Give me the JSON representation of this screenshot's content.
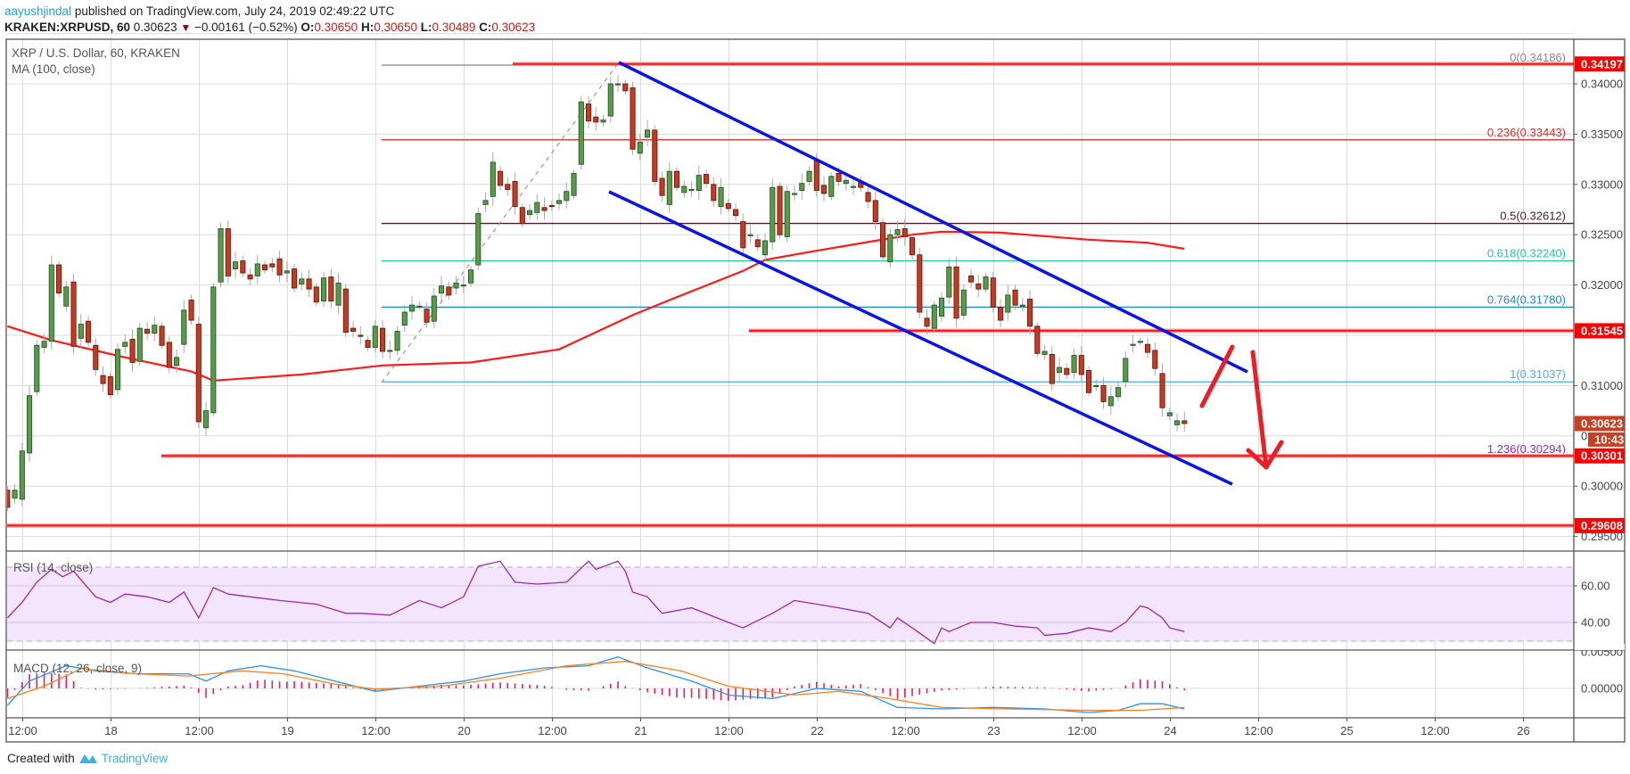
{
  "header": {
    "author": "aayushjindal",
    "published": " published on TradingView.com, July 24, 2019 02:49:22 UTC",
    "symbol": "KRAKEN:XRPUSD, 60",
    "last": "0.30623",
    "change": "−0.00161 (−0.52%)",
    "o_label": "O:",
    "o": "0.30650",
    "h_label": "H:",
    "h": "0.30650",
    "l_label": "L:",
    "l": "0.30489",
    "c_label": "C:",
    "c": "0.30623"
  },
  "legend": {
    "main": "XRP / U.S. Dollar, 60, KRAKEN",
    "ma": "MA (100, close)",
    "rsi": "RSI (14, close)",
    "macd": "MACD (12, 26, close, 9)"
  },
  "footer": {
    "created": "Created with",
    "brand": "TradingView"
  },
  "colors": {
    "up": "#5b9a47",
    "down": "#c8391f",
    "ma": "#ff1a1a",
    "channel": "#0a14e6",
    "level": "#ff1414",
    "rsi": "#9c27b0",
    "macd": "#2196f3",
    "signal": "#ff7f1e",
    "hist": "#e91e63"
  },
  "chart_data": [
    {
      "type": "candlestick",
      "title": "XRP / U.S. Dollar, 60, KRAKEN",
      "ylim": [
        0.2935,
        0.3455
      ],
      "y_ticks": [
        "0.34000",
        "0.33500",
        "0.33000",
        "0.32500",
        "0.32000",
        "0.31000",
        "0.30000",
        "0.29500"
      ],
      "x_ticks": [
        "12:00",
        "18",
        "12:00",
        "19",
        "12:00",
        "20",
        "12:00",
        "21",
        "12:00",
        "22",
        "12:00",
        "23",
        "12:00",
        "24",
        "12:00",
        "25",
        "12:00",
        "26"
      ],
      "candles_ohlc_note": "open, close per hourly bar",
      "candles": [
        [
          0.2996,
          0.2979
        ],
        [
          0.2988,
          0.2996
        ],
        [
          0.2987,
          0.3035
        ],
        [
          0.3033,
          0.309
        ],
        [
          0.3094,
          0.314
        ],
        [
          0.3138,
          0.3144
        ],
        [
          0.3144,
          0.322
        ],
        [
          0.322,
          0.3192
        ],
        [
          0.3179,
          0.3198
        ],
        [
          0.3203,
          0.3139
        ],
        [
          0.3147,
          0.3161
        ],
        [
          0.3164,
          0.3143
        ],
        [
          0.314,
          0.3116
        ],
        [
          0.311,
          0.3102
        ],
        [
          0.3109,
          0.3091
        ],
        [
          0.3096,
          0.3136
        ],
        [
          0.3139,
          0.3143
        ],
        [
          0.3146,
          0.3123
        ],
        [
          0.3124,
          0.3157
        ],
        [
          0.3156,
          0.3152
        ],
        [
          0.3152,
          0.316
        ],
        [
          0.3159,
          0.314
        ],
        [
          0.3143,
          0.3118
        ],
        [
          0.312,
          0.3128
        ],
        [
          0.3141,
          0.3175
        ],
        [
          0.3185,
          0.3165
        ],
        [
          0.3161,
          0.3064
        ],
        [
          0.3058,
          0.3075
        ],
        [
          0.3073,
          0.3198
        ],
        [
          0.3203,
          0.3256
        ],
        [
          0.3256,
          0.3209
        ],
        [
          0.3216,
          0.3223
        ],
        [
          0.3224,
          0.3212
        ],
        [
          0.321,
          0.3206
        ],
        [
          0.3209,
          0.3221
        ],
        [
          0.322,
          0.3215
        ],
        [
          0.3221,
          0.3218
        ],
        [
          0.3226,
          0.321
        ],
        [
          0.3212,
          0.3214
        ],
        [
          0.3216,
          0.3197
        ],
        [
          0.3201,
          0.3206
        ],
        [
          0.3206,
          0.3196
        ],
        [
          0.3198,
          0.3183
        ],
        [
          0.3184,
          0.3207
        ],
        [
          0.3208,
          0.3184
        ],
        [
          0.318,
          0.3202
        ],
        [
          0.3196,
          0.3153
        ],
        [
          0.3157,
          0.3154
        ],
        [
          0.315,
          0.3149
        ],
        [
          0.3145,
          0.3138
        ],
        [
          0.3138,
          0.3159
        ],
        [
          0.3157,
          0.3134
        ],
        [
          0.3135,
          0.3135
        ],
        [
          0.3135,
          0.3154
        ],
        [
          0.316,
          0.3173
        ],
        [
          0.3174,
          0.318
        ],
        [
          0.3179,
          0.3179
        ],
        [
          0.3176,
          0.3163
        ],
        [
          0.3164,
          0.3189
        ],
        [
          0.3192,
          0.3199
        ],
        [
          0.3198,
          0.319
        ],
        [
          0.3197,
          0.3202
        ],
        [
          0.32,
          0.32
        ],
        [
          0.3202,
          0.3215
        ],
        [
          0.322,
          0.3271
        ],
        [
          0.328,
          0.3284
        ],
        [
          0.3288,
          0.3322
        ],
        [
          0.3313,
          0.3299
        ],
        [
          0.33,
          0.3295
        ],
        [
          0.3303,
          0.3278
        ],
        [
          0.3277,
          0.3261
        ],
        [
          0.327,
          0.3274
        ],
        [
          0.3272,
          0.3282
        ],
        [
          0.3277,
          0.3274
        ],
        [
          0.3279,
          0.3278
        ],
        [
          0.3281,
          0.3284
        ],
        [
          0.3284,
          0.3293
        ],
        [
          0.3289,
          0.3311
        ],
        [
          0.332,
          0.3382
        ],
        [
          0.338,
          0.3363
        ],
        [
          0.3367,
          0.3362
        ],
        [
          0.3362,
          0.3364
        ],
        [
          0.3368,
          0.34
        ],
        [
          0.34,
          0.34
        ],
        [
          0.34,
          0.3393
        ],
        [
          0.3396,
          0.3335
        ],
        [
          0.3331,
          0.3342
        ],
        [
          0.3347,
          0.3354
        ],
        [
          0.3354,
          0.3303
        ],
        [
          0.3306,
          0.3289
        ],
        [
          0.328,
          0.3313
        ],
        [
          0.3313,
          0.3297
        ],
        [
          0.3292,
          0.3298
        ],
        [
          0.3295,
          0.3295
        ],
        [
          0.3294,
          0.3309
        ],
        [
          0.331,
          0.3301
        ],
        [
          0.33,
          0.3284
        ],
        [
          0.3278,
          0.3297
        ],
        [
          0.3281,
          0.3276
        ],
        [
          0.3275,
          0.3269
        ],
        [
          0.3263,
          0.3237
        ],
        [
          0.325,
          0.325
        ],
        [
          0.3245,
          0.3238
        ],
        [
          0.323,
          0.3244
        ],
        [
          0.3243,
          0.3297
        ],
        [
          0.3298,
          0.325
        ],
        [
          0.3248,
          0.3293
        ],
        [
          0.3291,
          0.3291
        ],
        [
          0.3294,
          0.3301
        ],
        [
          0.3303,
          0.3313
        ],
        [
          0.3324,
          0.3294
        ],
        [
          0.3299,
          0.3291
        ],
        [
          0.3288,
          0.3308
        ],
        [
          0.3311,
          0.3303
        ],
        [
          0.3301,
          0.3304
        ],
        [
          0.3298,
          0.3298
        ],
        [
          0.3303,
          0.3297
        ],
        [
          0.3292,
          0.3283
        ],
        [
          0.3284,
          0.3263
        ],
        [
          0.3262,
          0.3228
        ],
        [
          0.3223,
          0.325
        ],
        [
          0.325,
          0.3255
        ],
        [
          0.3256,
          0.3248
        ],
        [
          0.3247,
          0.323
        ],
        [
          0.323,
          0.3173
        ],
        [
          0.3167,
          0.3159
        ],
        [
          0.3157,
          0.318
        ],
        [
          0.3169,
          0.3187
        ],
        [
          0.3188,
          0.3218
        ],
        [
          0.3218,
          0.3167
        ],
        [
          0.317,
          0.3195
        ],
        [
          0.3209,
          0.3203
        ],
        [
          0.3201,
          0.3196
        ],
        [
          0.3196,
          0.3208
        ],
        [
          0.3207,
          0.3178
        ],
        [
          0.3178,
          0.3165
        ],
        [
          0.3173,
          0.319
        ],
        [
          0.3195,
          0.318
        ],
        [
          0.318,
          0.318
        ],
        [
          0.3186,
          0.3159
        ],
        [
          0.3159,
          0.3132
        ],
        [
          0.3131,
          0.3134
        ],
        [
          0.3131,
          0.3102
        ],
        [
          0.3113,
          0.3118
        ],
        [
          0.3117,
          0.3111
        ],
        [
          0.3113,
          0.313
        ],
        [
          0.313,
          0.3111
        ],
        [
          0.3115,
          0.3093
        ],
        [
          0.31,
          0.31
        ],
        [
          0.31,
          0.3084
        ],
        [
          0.308,
          0.3089
        ],
        [
          0.3089,
          0.3098
        ],
        [
          0.3104,
          0.3127
        ],
        [
          0.3141,
          0.3141
        ],
        [
          0.3144,
          0.3144
        ],
        [
          0.3141,
          0.3133
        ],
        [
          0.3135,
          0.3117
        ],
        [
          0.3112,
          0.3078
        ],
        [
          0.307,
          0.3073
        ],
        [
          0.3061,
          0.3065
        ],
        [
          0.3065,
          0.30623
        ]
      ],
      "ma100": [
        [
          0,
          0.3159
        ],
        [
          6,
          0.3145
        ],
        [
          16,
          0.3128
        ],
        [
          25,
          0.3114
        ],
        [
          28,
          0.3105
        ],
        [
          40,
          0.3111
        ],
        [
          51,
          0.312
        ],
        [
          63,
          0.3123
        ],
        [
          75,
          0.3136
        ],
        [
          85,
          0.317
        ],
        [
          90,
          0.3185
        ],
        [
          100,
          0.3214
        ],
        [
          103,
          0.3225
        ],
        [
          110,
          0.3234
        ],
        [
          118,
          0.3244
        ],
        [
          123,
          0.325
        ],
        [
          127,
          0.3253
        ],
        [
          135,
          0.3252
        ],
        [
          147,
          0.3245
        ],
        [
          155,
          0.3242
        ],
        [
          160,
          0.3236
        ]
      ],
      "levels": [
        {
          "price": 0.34197,
          "label": "0.34197"
        },
        {
          "price": 0.31545,
          "label": "0.31545"
        },
        {
          "price": 0.30301,
          "label": "0.30301"
        },
        {
          "price": 0.29608,
          "label": "0.29608"
        }
      ],
      "last_price_tag": {
        "label": "0.30623",
        "price": 0.30623,
        "countdown": "10:43",
        "partial_tick": "0"
      },
      "fibonacci": [
        {
          "ratio": "0",
          "price": 0.34186,
          "label": "0(0.34186)",
          "color": "#888888"
        },
        {
          "ratio": "0.236",
          "price": 0.33443,
          "label": "0.236(0.33443)",
          "color": "#d32f2f"
        },
        {
          "ratio": "0.5",
          "price": 0.32612,
          "label": "0.5(0.32612)",
          "color": "#4a1a2c"
        },
        {
          "ratio": "0.618",
          "price": 0.3224,
          "label": "0.618(0.32240)",
          "color": "#26c99a"
        },
        {
          "ratio": "0.764",
          "price": 0.3178,
          "label": "0.764(0.31780)",
          "color": "#1e88c8"
        },
        {
          "ratio": "1",
          "price": 0.31037,
          "label": "1(0.31037)",
          "color": "#4aaee0"
        },
        {
          "ratio": "1.236",
          "price": 0.30294,
          "label": "1.236(0.30294)",
          "color": "#9c27b0"
        }
      ]
    },
    {
      "type": "line",
      "title": "RSI (14, close)",
      "ylim": [
        20,
        80
      ],
      "y_ticks": [
        "60.00",
        "40.00"
      ],
      "band": [
        30,
        70
      ],
      "rsi": [
        [
          0,
          42.5
        ],
        [
          2,
          51
        ],
        [
          4,
          62
        ],
        [
          6,
          69
        ],
        [
          7.5,
          65
        ],
        [
          9,
          68
        ],
        [
          12,
          54
        ],
        [
          14,
          51
        ],
        [
          16,
          55.5
        ],
        [
          19,
          54
        ],
        [
          22,
          51
        ],
        [
          24,
          56.6
        ],
        [
          26,
          42.5
        ],
        [
          28,
          59
        ],
        [
          30,
          55.5
        ],
        [
          33,
          54
        ],
        [
          37,
          52
        ],
        [
          42,
          50
        ],
        [
          46,
          45
        ],
        [
          48,
          45
        ],
        [
          52,
          44
        ],
        [
          56,
          52
        ],
        [
          59,
          48
        ],
        [
          62,
          54
        ],
        [
          64,
          70.7
        ],
        [
          67,
          73.5
        ],
        [
          69,
          62
        ],
        [
          72,
          61
        ],
        [
          76,
          62
        ],
        [
          79,
          73.5
        ],
        [
          80,
          69
        ],
        [
          83,
          73.5
        ],
        [
          84,
          68
        ],
        [
          85,
          56.6
        ],
        [
          87,
          54
        ],
        [
          89,
          45
        ],
        [
          93,
          48
        ],
        [
          98,
          40
        ],
        [
          100,
          37
        ],
        [
          104,
          45
        ],
        [
          107,
          52
        ],
        [
          113,
          48
        ],
        [
          117,
          45
        ],
        [
          120,
          37
        ],
        [
          121,
          42.5
        ],
        [
          123,
          37
        ],
        [
          126,
          28.5
        ],
        [
          127,
          37
        ],
        [
          128,
          35
        ],
        [
          131,
          40
        ],
        [
          134,
          40
        ],
        [
          137,
          38
        ],
        [
          140,
          37
        ],
        [
          141,
          33
        ],
        [
          144,
          34
        ],
        [
          147,
          37
        ],
        [
          150,
          35
        ],
        [
          152,
          40
        ],
        [
          154,
          49
        ],
        [
          155,
          48
        ],
        [
          157,
          42.5
        ],
        [
          158,
          37
        ],
        [
          160,
          35
        ]
      ]
    },
    {
      "type": "line",
      "title": "MACD (12, 26, close, 9)",
      "y_ticks": [
        "0.00500",
        "0.00000"
      ],
      "macd": [
        [
          0,
          -0.0023
        ],
        [
          3,
          0.001
        ],
        [
          8,
          0.0031
        ],
        [
          12,
          0.0024
        ],
        [
          17.5,
          0.002
        ],
        [
          24.6,
          0.002
        ],
        [
          27,
          0.001
        ],
        [
          30,
          0.0024
        ],
        [
          34.5,
          0.0031
        ],
        [
          39,
          0.0024
        ],
        [
          44.5,
          0.001
        ],
        [
          50,
          -0.0004
        ],
        [
          56,
          0.0003
        ],
        [
          62,
          0.001
        ],
        [
          67,
          0.002
        ],
        [
          73,
          0.0028
        ],
        [
          79,
          0.0031
        ],
        [
          83,
          0.0043
        ],
        [
          87,
          0.0028
        ],
        [
          93,
          0.001
        ],
        [
          98,
          -0.0009
        ],
        [
          104,
          -0.0014
        ],
        [
          110,
          0.0
        ],
        [
          116,
          -0.0004
        ],
        [
          121,
          -0.0026
        ],
        [
          127,
          -0.0028
        ],
        [
          134,
          -0.0026
        ],
        [
          141,
          -0.0028
        ],
        [
          147,
          -0.0033
        ],
        [
          151,
          -0.003
        ],
        [
          154,
          -0.0021
        ],
        [
          157,
          -0.0021
        ],
        [
          160,
          -0.0028
        ]
      ],
      "signal": [
        [
          0,
          -0.0014
        ],
        [
          5,
          0.0003
        ],
        [
          10,
          0.0027
        ],
        [
          17.5,
          0.002
        ],
        [
          24.6,
          0.0017
        ],
        [
          32,
          0.0024
        ],
        [
          37.5,
          0.002
        ],
        [
          44.5,
          0.0006
        ],
        [
          50,
          -0.0001
        ],
        [
          59,
          0.0003
        ],
        [
          67,
          0.0014
        ],
        [
          76,
          0.0031
        ],
        [
          84,
          0.0037
        ],
        [
          91.5,
          0.0024
        ],
        [
          98,
          0.0003
        ],
        [
          107,
          -0.0009
        ],
        [
          113,
          -0.0004
        ],
        [
          120,
          -0.0014
        ],
        [
          127,
          -0.0026
        ],
        [
          135.5,
          -0.0028
        ],
        [
          147,
          -0.003
        ],
        [
          154,
          -0.003
        ],
        [
          160,
          -0.0026
        ]
      ]
    }
  ]
}
